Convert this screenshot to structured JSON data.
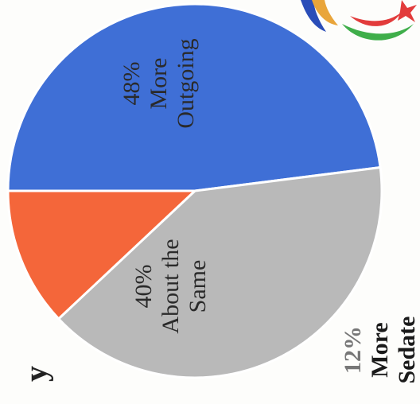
{
  "chart_data": {
    "type": "pie",
    "title": "y",
    "categories": [
      "More Outgoing",
      "About the Same",
      "More Sedate"
    ],
    "values": [
      48,
      40,
      12
    ],
    "value_labels": [
      "48%",
      "40%",
      "12%"
    ],
    "colors": [
      "#3f6fd6",
      "#b9b9b9",
      "#f4663a"
    ]
  }
}
